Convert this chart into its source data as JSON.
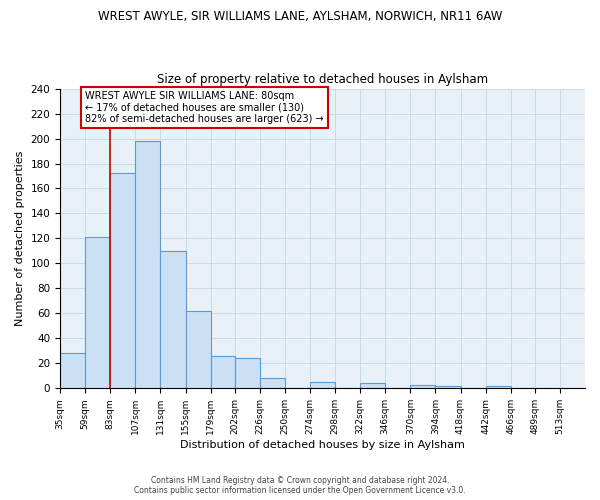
{
  "title": "WREST AWYLE, SIR WILLIAMS LANE, AYLSHAM, NORWICH, NR11 6AW",
  "subtitle": "Size of property relative to detached houses in Aylsham",
  "xlabel": "Distribution of detached houses by size in Aylsham",
  "ylabel": "Number of detached properties",
  "bar_values": [
    28,
    121,
    172,
    198,
    110,
    62,
    26,
    24,
    8,
    0,
    5,
    0,
    4,
    0,
    3,
    2,
    0,
    2,
    0,
    0
  ],
  "bin_edges": [
    35,
    59,
    83,
    107,
    131,
    155,
    179,
    202,
    226,
    250,
    274,
    298,
    322,
    346,
    370,
    394,
    418,
    442,
    466,
    489,
    513
  ],
  "tick_labels": [
    "35sqm",
    "59sqm",
    "83sqm",
    "107sqm",
    "131sqm",
    "155sqm",
    "179sqm",
    "202sqm",
    "226sqm",
    "250sqm",
    "274sqm",
    "298sqm",
    "322sqm",
    "346sqm",
    "370sqm",
    "394sqm",
    "418sqm",
    "442sqm",
    "466sqm",
    "489sqm",
    "513sqm"
  ],
  "bar_color": "#cce0f5",
  "bar_edge_color": "#5b9bd5",
  "vline_x": 83,
  "vline_color": "#cc0000",
  "ylim": [
    0,
    240
  ],
  "yticks": [
    0,
    20,
    40,
    60,
    80,
    100,
    120,
    140,
    160,
    180,
    200,
    220,
    240
  ],
  "annotation_title": "WREST AWYLE SIR WILLIAMS LANE: 80sqm",
  "annotation_line1": "← 17% of detached houses are smaller (130)",
  "annotation_line2": "82% of semi-detached houses are larger (623) →",
  "annotation_box_color": "#ffffff",
  "annotation_box_edge": "#cc0000",
  "footer1": "Contains HM Land Registry data © Crown copyright and database right 2024.",
  "footer2": "Contains public sector information licensed under the Open Government Licence v3.0.",
  "fig_bg_color": "#ffffff",
  "plot_bg_color": "#e8f0f8",
  "grid_color": "#c8d4e8"
}
